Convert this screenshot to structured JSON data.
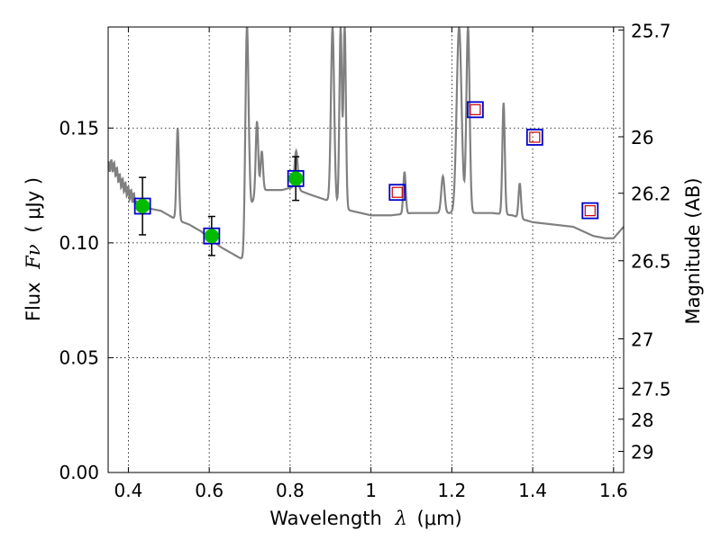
{
  "chart_data": {
    "type": "scatter",
    "xlabel": "Wavelength",
    "xlabel_symbol": "λ",
    "xlabel_unit": "(μm)",
    "ylabel": "Flux",
    "ylabel_symbol": "Fν",
    "ylabel_unit": "( μJy )",
    "y2label": "Magnitude (AB)",
    "xlim": [
      0.35,
      1.625
    ],
    "ylim": [
      0.0,
      0.194
    ],
    "grid": true,
    "x_ticks": [
      0.4,
      0.6,
      0.8,
      1.0,
      1.2,
      1.4,
      1.6
    ],
    "x_tick_labels": [
      "0.4",
      "0.6",
      "0.8",
      "1",
      "1.2",
      "1.4",
      "1.6"
    ],
    "y_ticks": [
      0.0,
      0.05,
      0.1,
      0.15
    ],
    "y_tick_labels": [
      "0.00",
      "0.05",
      "0.10",
      "0.15"
    ],
    "y2_ticks": [
      {
        "label": "25.7",
        "flux": 0.1927
      },
      {
        "label": "26",
        "flux": 0.1462
      },
      {
        "label": "26.2",
        "flux": 0.1216
      },
      {
        "label": "26.5",
        "flux": 0.0922
      },
      {
        "label": "27",
        "flux": 0.0582
      },
      {
        "label": "27.5",
        "flux": 0.0367
      },
      {
        "label": "28",
        "flux": 0.0232
      },
      {
        "label": "29",
        "flux": 0.0092
      }
    ],
    "model_spectrum": {
      "color": "#808080",
      "continuum": [
        [
          0.35,
          0.133
        ],
        [
          0.36,
          0.134
        ],
        [
          0.37,
          0.131
        ],
        [
          0.38,
          0.127
        ],
        [
          0.4,
          0.122
        ],
        [
          0.42,
          0.118
        ],
        [
          0.45,
          0.115
        ],
        [
          0.48,
          0.114
        ],
        [
          0.5,
          0.112
        ],
        [
          0.52,
          0.11
        ],
        [
          0.55,
          0.108
        ],
        [
          0.58,
          0.105
        ],
        [
          0.6,
          0.102
        ],
        [
          0.63,
          0.098
        ],
        [
          0.66,
          0.095
        ],
        [
          0.68,
          0.093
        ],
        [
          0.69,
          0.088
        ],
        [
          0.7,
          0.115
        ],
        [
          0.72,
          0.123
        ],
        [
          0.75,
          0.123
        ],
        [
          0.78,
          0.123
        ],
        [
          0.8,
          0.124
        ],
        [
          0.82,
          0.123
        ],
        [
          0.85,
          0.121
        ],
        [
          0.9,
          0.118
        ],
        [
          0.95,
          0.114
        ],
        [
          1.0,
          0.112
        ],
        [
          1.05,
          0.112
        ],
        [
          1.1,
          0.113
        ],
        [
          1.15,
          0.113
        ],
        [
          1.2,
          0.113
        ],
        [
          1.25,
          0.113
        ],
        [
          1.3,
          0.113
        ],
        [
          1.35,
          0.112
        ],
        [
          1.38,
          0.11
        ],
        [
          1.4,
          0.109
        ],
        [
          1.45,
          0.108
        ],
        [
          1.5,
          0.107
        ],
        [
          1.55,
          0.103
        ],
        [
          1.58,
          0.102
        ],
        [
          1.6,
          0.102
        ],
        [
          1.625,
          0.107
        ]
      ],
      "emission_lines": [
        {
          "x": 0.522,
          "peak": 0.15,
          "width": 0.003
        },
        {
          "x": 0.693,
          "peak": 0.194,
          "width": 0.004
        },
        {
          "x": 0.718,
          "peak": 0.153,
          "width": 0.003
        },
        {
          "x": 0.73,
          "peak": 0.14,
          "width": 0.003
        },
        {
          "x": 0.815,
          "peak": 0.14,
          "width": 0.004
        },
        {
          "x": 0.905,
          "peak": 0.194,
          "width": 0.004
        },
        {
          "x": 0.925,
          "peak": 0.194,
          "width": 0.003
        },
        {
          "x": 0.935,
          "peak": 0.194,
          "width": 0.003
        },
        {
          "x": 1.083,
          "peak": 0.131,
          "width": 0.003
        },
        {
          "x": 1.178,
          "peak": 0.129,
          "width": 0.004
        },
        {
          "x": 1.218,
          "peak": 0.194,
          "width": 0.006
        },
        {
          "x": 1.24,
          "peak": 0.194,
          "width": 0.004
        },
        {
          "x": 1.328,
          "peak": 0.161,
          "width": 0.003
        },
        {
          "x": 1.368,
          "peak": 0.126,
          "width": 0.003
        }
      ]
    },
    "series": [
      {
        "marker": "circle",
        "color": "#00bb00",
        "points": [
          {
            "x": 0.435,
            "y": 0.116,
            "yerr": 0.0125
          },
          {
            "x": 0.606,
            "y": 0.103,
            "yerr": 0.0085
          },
          {
            "x": 0.814,
            "y": 0.128,
            "yerr": 0.0095
          }
        ]
      },
      {
        "marker": "square",
        "color": "#0000cc",
        "points": [
          {
            "x": 0.435,
            "y": 0.116
          },
          {
            "x": 0.606,
            "y": 0.103
          },
          {
            "x": 0.814,
            "y": 0.128
          },
          {
            "x": 1.065,
            "y": 0.122
          },
          {
            "x": 1.258,
            "y": 0.158
          },
          {
            "x": 1.405,
            "y": 0.146
          },
          {
            "x": 1.542,
            "y": 0.114
          }
        ]
      },
      {
        "marker": "small-square",
        "color": "#cc0000",
        "points": [
          {
            "x": 1.065,
            "y": 0.122
          },
          {
            "x": 1.258,
            "y": 0.158
          },
          {
            "x": 1.405,
            "y": 0.146
          },
          {
            "x": 1.542,
            "y": 0.114
          }
        ]
      }
    ]
  }
}
